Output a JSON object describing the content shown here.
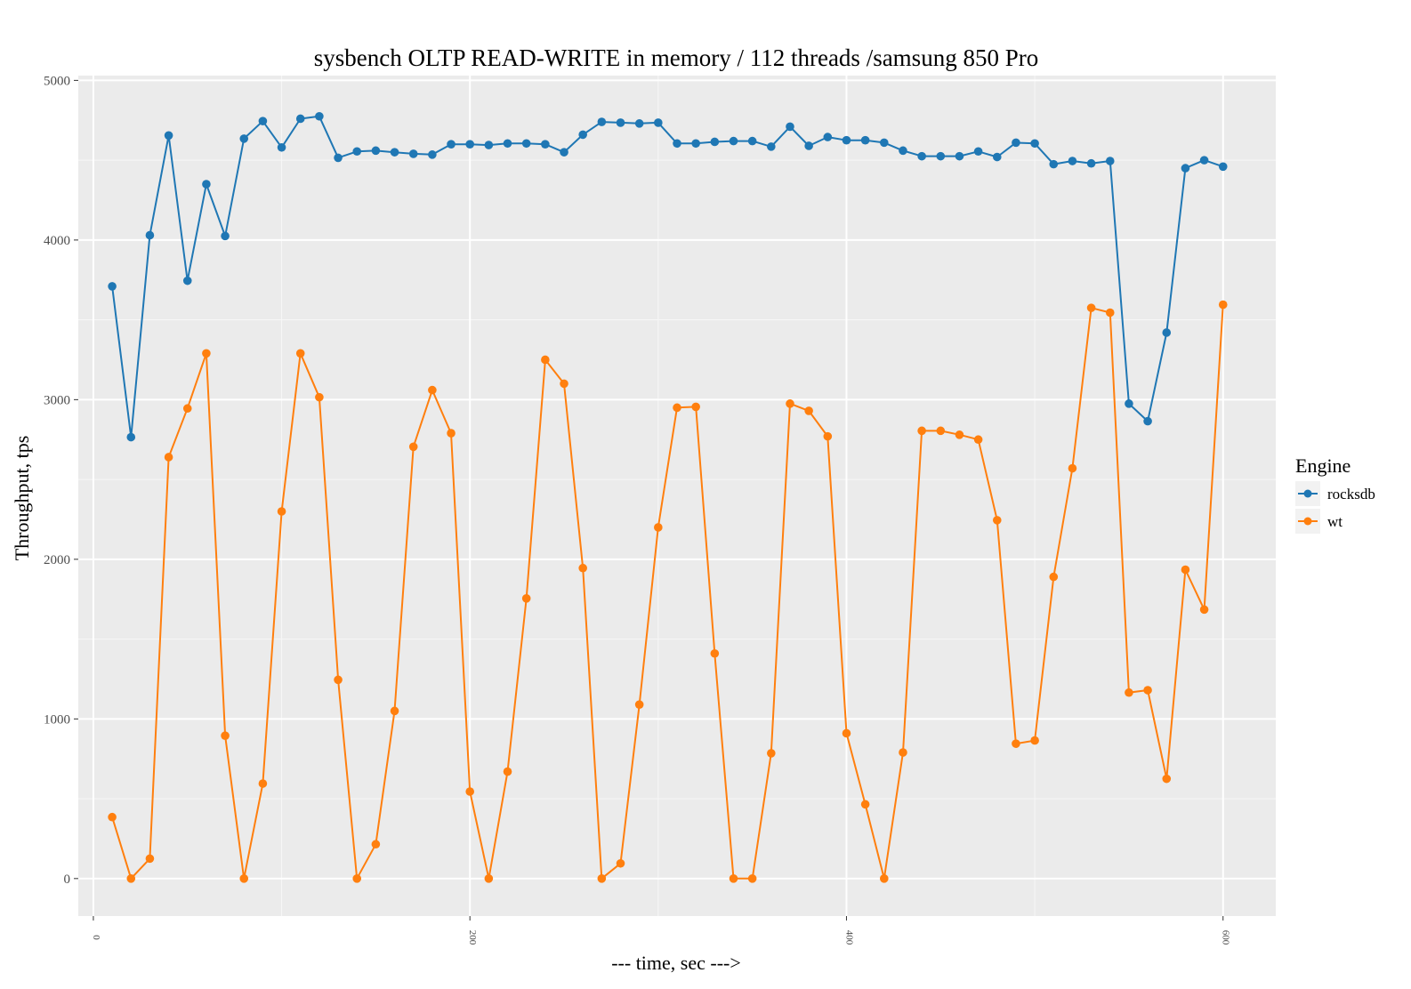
{
  "chart_data": {
    "type": "line",
    "title": "sysbench OLTP READ-WRITE in memory / 112 threads /samsung 850 Pro",
    "xlabel": "--- time, sec --->",
    "ylabel": "Throughput, tps",
    "xlim": [
      -8,
      628
    ],
    "ylim": [
      -235,
      5030
    ],
    "x_ticks": [
      0,
      200,
      400,
      600
    ],
    "x_tick_labels": [
      "0",
      "200",
      "400",
      "600"
    ],
    "y_ticks": [
      0,
      1000,
      2000,
      3000,
      4000,
      5000
    ],
    "y_tick_labels": [
      "0",
      "1000",
      "2000",
      "3000",
      "4000",
      "5000"
    ],
    "grid": true,
    "legend": {
      "title": "Engine",
      "position": "right",
      "entries": [
        "rocksdb",
        "wt"
      ]
    },
    "x": [
      10,
      20,
      30,
      40,
      50,
      60,
      70,
      80,
      90,
      100,
      110,
      120,
      130,
      140,
      150,
      160,
      170,
      180,
      190,
      200,
      210,
      220,
      230,
      240,
      250,
      260,
      270,
      280,
      290,
      300,
      310,
      320,
      330,
      340,
      350,
      360,
      370,
      380,
      390,
      400,
      410,
      420,
      430,
      440,
      450,
      460,
      470,
      480,
      490,
      500,
      510,
      520,
      530,
      540,
      550,
      560,
      570,
      580,
      590,
      600
    ],
    "series": [
      {
        "name": "rocksdb",
        "color": "#1f77b4",
        "values": [
          3710,
          2765,
          4030,
          4655,
          3745,
          4350,
          4025,
          4635,
          4745,
          4580,
          4760,
          4775,
          4515,
          4555,
          4560,
          4550,
          4540,
          4535,
          4600,
          4600,
          4595,
          4605,
          4605,
          4600,
          4550,
          4660,
          4740,
          4735,
          4730,
          4735,
          4605,
          4605,
          4615,
          4620,
          4620,
          4585,
          4710,
          4590,
          4645,
          4625,
          4625,
          4610,
          4560,
          4525,
          4525,
          4525,
          4555,
          4520,
          4610,
          4605,
          4475,
          4495,
          4480,
          4495,
          2975,
          2865,
          3420,
          4450,
          4500,
          4460
        ]
      },
      {
        "name": "wt",
        "color": "#ff7f0e",
        "values": [
          385,
          0,
          125,
          2640,
          2945,
          3290,
          895,
          0,
          595,
          2300,
          3290,
          3015,
          1245,
          0,
          215,
          1050,
          2705,
          3060,
          2790,
          545,
          0,
          670,
          1755,
          3250,
          3100,
          1945,
          0,
          95,
          1090,
          2200,
          2950,
          2955,
          1410,
          0,
          0,
          785,
          2975,
          2930,
          2770,
          910,
          465,
          0,
          790,
          2805,
          2805,
          2780,
          2750,
          2245,
          845,
          865,
          1890,
          2570,
          3575,
          3545,
          1165,
          1180,
          625,
          1935,
          1685,
          3595
        ]
      }
    ]
  }
}
